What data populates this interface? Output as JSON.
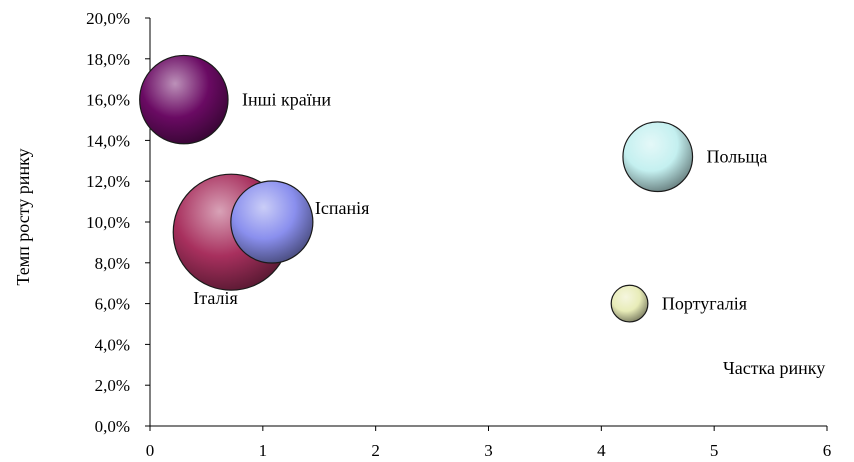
{
  "chart_data": {
    "type": "bubble",
    "xlabel": "Частка ринку",
    "ylabel": "Темп росту ринку",
    "xlim": [
      0,
      6
    ],
    "ylim": [
      0,
      0.2
    ],
    "x_ticks": [
      "0",
      "1",
      "2",
      "3",
      "4",
      "5",
      "6"
    ],
    "y_ticks": [
      "0,0%",
      "2,0%",
      "4,0%",
      "6,0%",
      "8,0%",
      "10,0%",
      "12,0%",
      "14,0%",
      "16,0%",
      "18,0%",
      "20,0%"
    ],
    "grid": false,
    "bubbles": [
      {
        "label": "Інші країни",
        "x": 0.3,
        "y": 0.16,
        "size": 0.29,
        "color": "#6a0a63",
        "label_pos": "right"
      },
      {
        "label": "Італія",
        "x": 0.72,
        "y": 0.095,
        "size": 0.5,
        "color": "#a8305e",
        "label_pos": "below-left"
      },
      {
        "label": "Іспанія",
        "x": 1.08,
        "y": 0.1,
        "size": 0.25,
        "color": "#8a8fee",
        "label_pos": "right-up"
      },
      {
        "label": "Польща",
        "x": 4.5,
        "y": 0.132,
        "size": 0.18,
        "color": "#c4f0f0",
        "label_pos": "right"
      },
      {
        "label": "Португалія",
        "x": 4.25,
        "y": 0.06,
        "size": 0.05,
        "color": "#e8ecb8",
        "label_pos": "right"
      }
    ]
  }
}
